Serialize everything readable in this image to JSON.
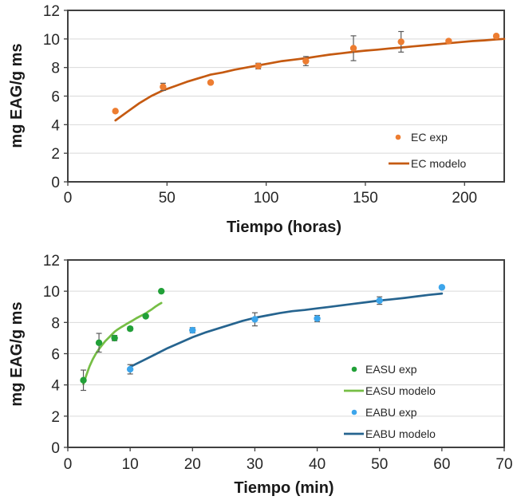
{
  "palette": {
    "background": "#FFFFFF",
    "grid": "#D9D9D9",
    "axis": "#404040",
    "error_bar": "#595959",
    "text": "#262626"
  },
  "chart_data": [
    {
      "type": "scatter-line",
      "title": "",
      "xlabel": "Tiempo (horas)",
      "ylabel": "mg EAG/g ms",
      "xlim": [
        0,
        220
      ],
      "ylim": [
        0,
        12
      ],
      "xticks": [
        0,
        50,
        100,
        150,
        200
      ],
      "yticks": [
        0,
        2,
        4,
        6,
        8,
        10,
        12
      ],
      "grid": "horizontal-only",
      "legend_position": "inside-right",
      "series": [
        {
          "name": "EC exp",
          "type": "scatter",
          "color": "#ED7D31",
          "x": [
            24,
            48,
            72,
            96,
            120,
            144,
            168,
            192,
            216
          ],
          "y": [
            4.95,
            6.65,
            6.95,
            8.1,
            8.45,
            9.35,
            9.8,
            9.85,
            10.2
          ],
          "yerr": [
            0,
            0.25,
            0.1,
            0.2,
            0.32,
            0.87,
            0.72,
            0.08,
            0.1
          ]
        },
        {
          "name": "EC modelo",
          "type": "line",
          "color": "#C55A11",
          "x": [
            24,
            30,
            36,
            42,
            48,
            54,
            60,
            66,
            72,
            78,
            84,
            90,
            96,
            102,
            108,
            114,
            120,
            126,
            132,
            138,
            144,
            150,
            156,
            162,
            168,
            174,
            180,
            186,
            192,
            198,
            204,
            210,
            216,
            220
          ],
          "y": [
            4.3,
            4.9,
            5.5,
            6.0,
            6.4,
            6.7,
            7.0,
            7.25,
            7.5,
            7.65,
            7.85,
            8.0,
            8.15,
            8.3,
            8.45,
            8.55,
            8.65,
            8.78,
            8.9,
            9.0,
            9.1,
            9.18,
            9.25,
            9.33,
            9.4,
            9.48,
            9.55,
            9.63,
            9.7,
            9.78,
            9.85,
            9.9,
            9.97,
            10.0
          ]
        }
      ]
    },
    {
      "type": "scatter-line",
      "title": "",
      "xlabel": "Tiempo (min)",
      "ylabel": "mg EAG/g ms",
      "xlim": [
        0,
        70
      ],
      "ylim": [
        0,
        12
      ],
      "xticks": [
        0,
        10,
        20,
        30,
        40,
        50,
        60,
        70
      ],
      "yticks": [
        0,
        2,
        4,
        6,
        8,
        10,
        12
      ],
      "grid": "horizontal-only",
      "legend_position": "inside-right",
      "series": [
        {
          "name": "EASU exp",
          "type": "scatter",
          "color": "#21A038",
          "x": [
            2.5,
            5,
            7.5,
            10,
            12.5,
            15
          ],
          "y": [
            4.3,
            6.7,
            7.0,
            7.6,
            8.4,
            10.0
          ],
          "yerr": [
            0.65,
            0.6,
            0.17,
            0.12,
            0,
            0
          ]
        },
        {
          "name": "EASU modelo",
          "type": "line",
          "color": "#76BE45",
          "x": [
            2.5,
            3,
            3.5,
            4,
            4.5,
            5,
            5.5,
            6,
            6.5,
            7,
            7.5,
            8,
            8.5,
            9,
            9.5,
            10,
            10.5,
            11,
            11.5,
            12,
            12.5,
            13,
            13.5,
            14,
            14.5,
            15
          ],
          "y": [
            4.05,
            4.65,
            5.2,
            5.65,
            6.0,
            6.3,
            6.55,
            6.8,
            7.0,
            7.2,
            7.4,
            7.55,
            7.68,
            7.8,
            7.92,
            8.03,
            8.15,
            8.27,
            8.38,
            8.48,
            8.58,
            8.72,
            8.85,
            9.0,
            9.13,
            9.25
          ]
        },
        {
          "name": "EABU exp",
          "type": "scatter",
          "color": "#3CA5EB",
          "x": [
            10,
            20,
            30,
            40,
            50,
            60
          ],
          "y": [
            5.0,
            7.5,
            8.2,
            8.25,
            9.4,
            10.25
          ],
          "yerr": [
            0.3,
            0.17,
            0.42,
            0.2,
            0.24,
            0
          ]
        },
        {
          "name": "EABU modelo",
          "type": "line",
          "color": "#26648F",
          "x": [
            10,
            12,
            14,
            16,
            18,
            20,
            22,
            24,
            26,
            28,
            30,
            32,
            34,
            36,
            38,
            40,
            42,
            44,
            46,
            48,
            50,
            52,
            54,
            56,
            58,
            60
          ],
          "y": [
            5.15,
            5.55,
            5.95,
            6.35,
            6.7,
            7.05,
            7.35,
            7.6,
            7.85,
            8.1,
            8.3,
            8.45,
            8.6,
            8.72,
            8.8,
            8.9,
            9.0,
            9.1,
            9.2,
            9.3,
            9.4,
            9.48,
            9.57,
            9.67,
            9.77,
            9.85
          ]
        }
      ]
    }
  ]
}
